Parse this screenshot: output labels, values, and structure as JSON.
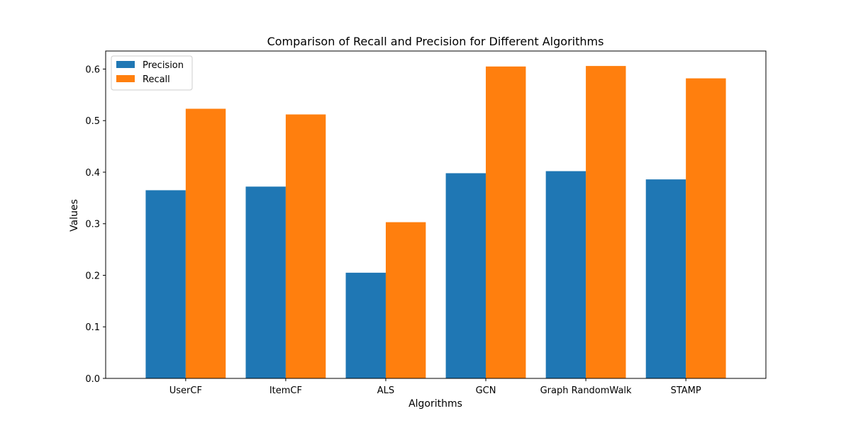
{
  "chart_data": {
    "type": "bar",
    "title": "Comparison of Recall and Precision for Different Algorithms",
    "xlabel": "Algorithms",
    "ylabel": "Values",
    "categories": [
      "UserCF",
      "ItemCF",
      "ALS",
      "GCN",
      "Graph RandomWalk",
      "STAMP"
    ],
    "series": [
      {
        "name": "Precision",
        "color": "#1f77b4",
        "values": [
          0.365,
          0.372,
          0.205,
          0.398,
          0.402,
          0.386
        ]
      },
      {
        "name": "Recall",
        "color": "#ff7f0e",
        "values": [
          0.523,
          0.512,
          0.303,
          0.605,
          0.606,
          0.582
        ]
      }
    ],
    "ylim": [
      0,
      0.635
    ],
    "yticks": [
      0.0,
      0.1,
      0.2,
      0.3,
      0.4,
      0.5,
      0.6
    ],
    "ytick_labels": [
      "0.0",
      "0.1",
      "0.2",
      "0.3",
      "0.4",
      "0.5",
      "0.6"
    ],
    "grid": false,
    "legend_position": "top-left"
  }
}
